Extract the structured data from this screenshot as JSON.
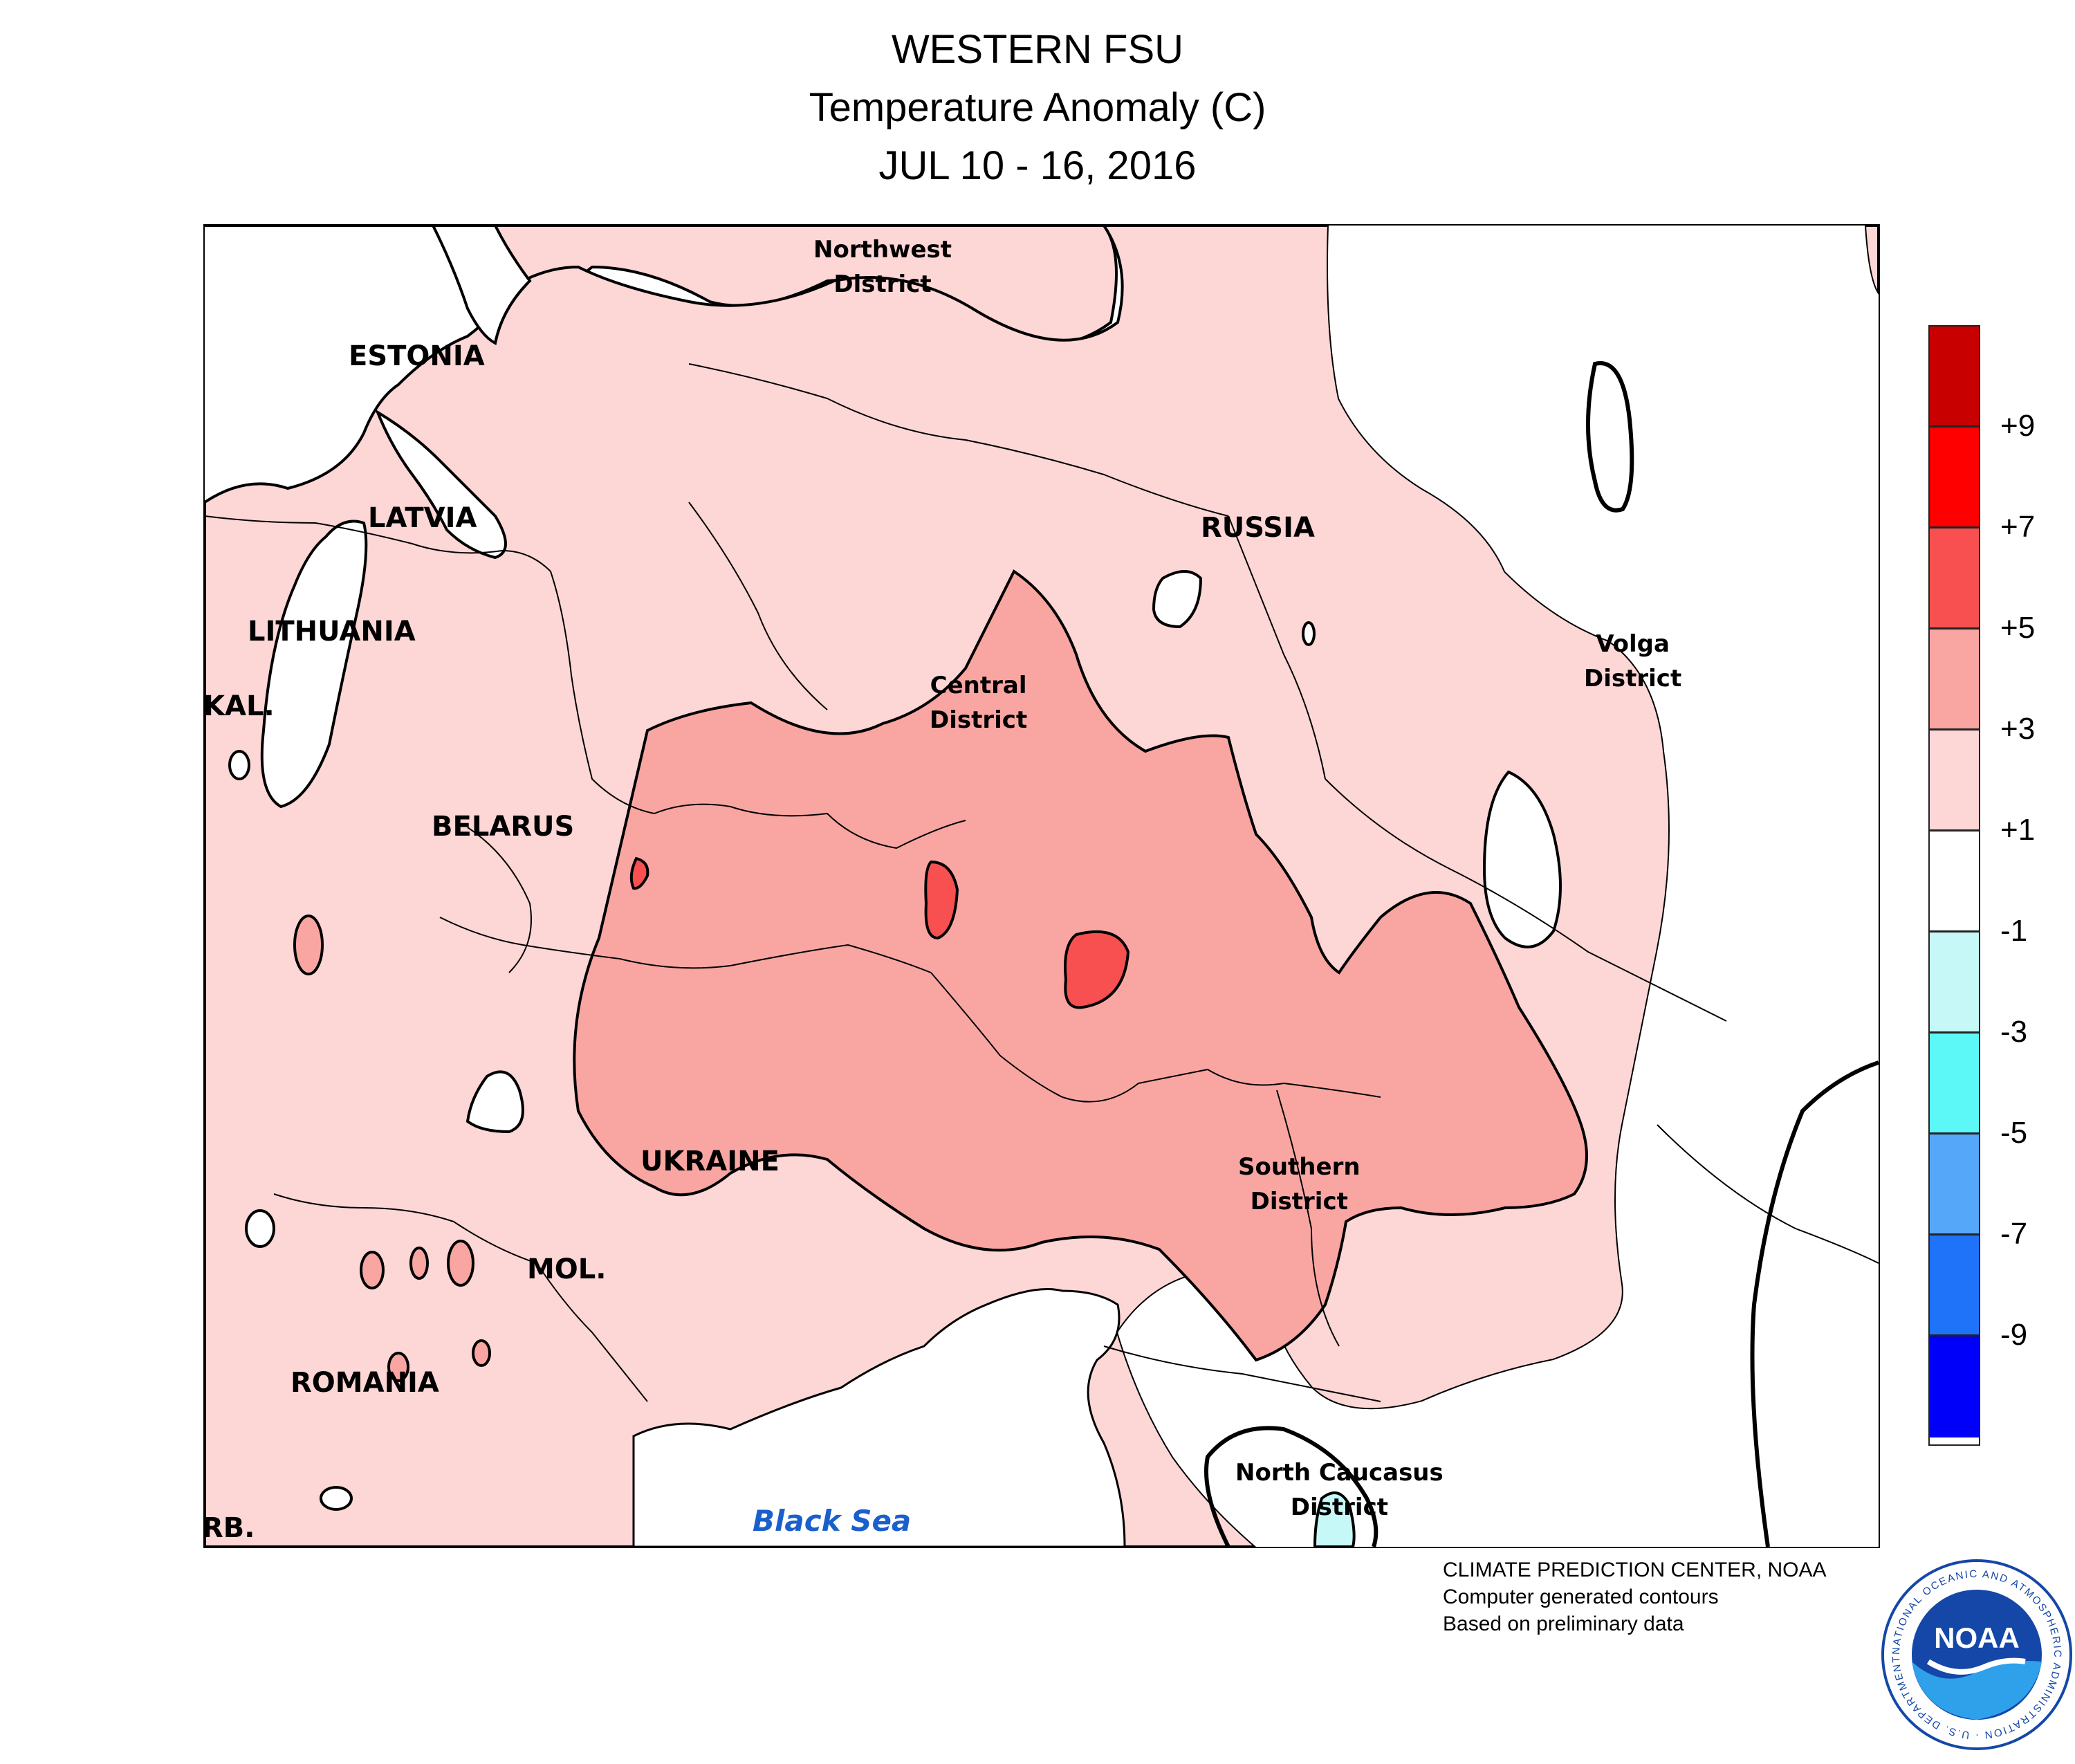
{
  "header": {
    "region": "WESTERN FSU",
    "variable": "Temperature Anomaly (C)",
    "period": "JUL 10 - 16, 2016"
  },
  "map": {
    "countries": {
      "estonia": "ESTONIA",
      "latvia": "LATVIA",
      "lithuania": "LITHUANIA",
      "kaliningrad": "KAL.",
      "belarus": "BELARUS",
      "ukraine": "UKRAINE",
      "moldova": "MOL.",
      "romania": "ROMANIA",
      "serbia": "RB.",
      "russia": "RUSSIA"
    },
    "districts": {
      "northwest": "Northwest\nDistrict",
      "central": "Central\nDistrict",
      "volga": "Volga\nDistrict",
      "southern": "Southern\nDistrict",
      "north_caucasus": "North Caucasus\nDistrict"
    },
    "water": {
      "black_sea": "Black Sea"
    }
  },
  "legend": {
    "bins": [
      {
        "color": "#c80000"
      },
      {
        "color": "#ff0000"
      },
      {
        "color": "#f85050"
      },
      {
        "color": "#f9a6a3"
      },
      {
        "color": "#fdd6d6"
      },
      {
        "color": "#ffffff"
      },
      {
        "color": "#c6f8f8"
      },
      {
        "color": "#5cf8f8"
      },
      {
        "color": "#55a7fa"
      },
      {
        "color": "#1e73f8"
      },
      {
        "color": "#0000fa"
      }
    ],
    "labels": [
      "+9",
      "+7",
      "+5",
      "+3",
      "+1",
      "-1",
      "-3",
      "-5",
      "-7",
      "-9"
    ]
  },
  "colors": {
    "anomaly_1_3": "#fdd6d6",
    "anomaly_3_5": "#f9a6a3",
    "anomaly_5_7": "#f85050",
    "anomaly_neg_1_3": "#c6f8f8",
    "sea_label": "#1a5fcc",
    "noaa_blue": "#1447a8"
  },
  "credits": {
    "line1": "CLIMATE PREDICTION CENTER, NOAA",
    "line2": "Computer generated contours",
    "line3": "Based on preliminary data"
  },
  "logo": {
    "center_text": "NOAA",
    "ring_text": "NATIONAL OCEANIC AND ATMOSPHERIC ADMINISTRATION · U.S. DEPARTMENT OF COMMERCE ·"
  }
}
